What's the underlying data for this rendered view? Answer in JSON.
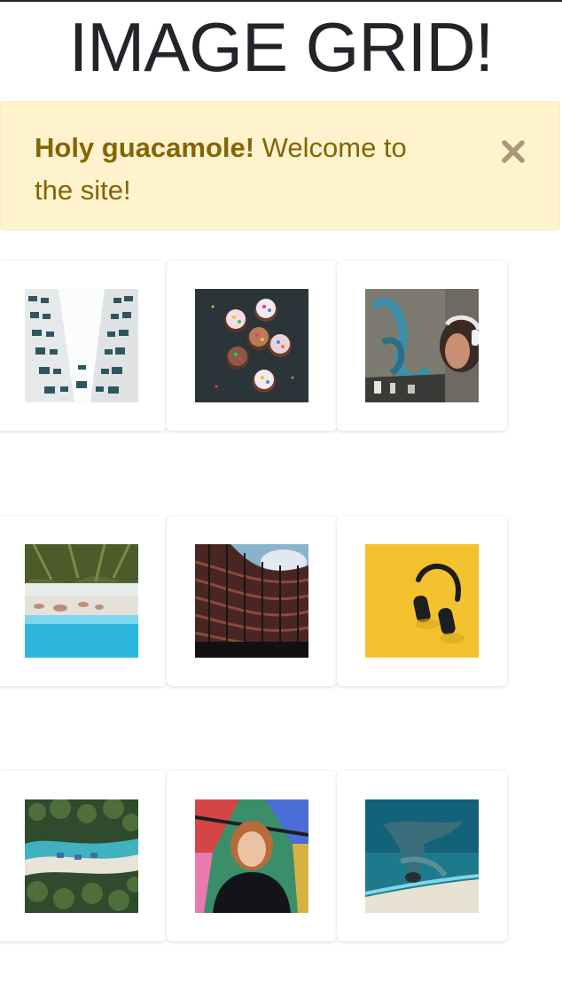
{
  "page": {
    "title": "IMAGE GRID!"
  },
  "alert": {
    "strong": "Holy guacamole!",
    "message": " Welcome to the site!",
    "close_icon": "close-icon",
    "colors": {
      "background": "#fff3cd",
      "text": "#856404",
      "close": "#a89a70"
    }
  },
  "grid": {
    "images": [
      {
        "name": "image-building-facade",
        "subject": "white building facade looking up"
      },
      {
        "name": "image-cupcakes",
        "subject": "cupcakes with sprinkles on dark table"
      },
      {
        "name": "image-graffiti-headphones",
        "subject": "person with headphones by graffiti wall"
      },
      {
        "name": "image-beach-palms",
        "subject": "beach with turquoise water under palm trees"
      },
      {
        "name": "image-curved-building",
        "subject": "curved modern building against sky"
      },
      {
        "name": "image-headphones-yellow",
        "subject": "black headphones on yellow background"
      },
      {
        "name": "image-aerial-beach-huts",
        "subject": "aerial view of beach huts in forest"
      },
      {
        "name": "image-portrait-graffiti",
        "subject": "portrait of person in front of mural"
      },
      {
        "name": "image-aerial-reef",
        "subject": "aerial view of turquoise reef"
      }
    ]
  }
}
